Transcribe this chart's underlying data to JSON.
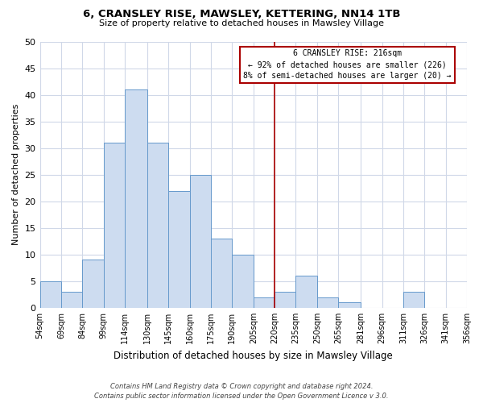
{
  "title": "6, CRANSLEY RISE, MAWSLEY, KETTERING, NN14 1TB",
  "subtitle": "Size of property relative to detached houses in Mawsley Village",
  "xlabel": "Distribution of detached houses by size in Mawsley Village",
  "ylabel": "Number of detached properties",
  "footer_lines": [
    "Contains HM Land Registry data © Crown copyright and database right 2024.",
    "Contains public sector information licensed under the Open Government Licence v 3.0."
  ],
  "bin_labels": [
    "54sqm",
    "69sqm",
    "84sqm",
    "99sqm",
    "114sqm",
    "130sqm",
    "145sqm",
    "160sqm",
    "175sqm",
    "190sqm",
    "205sqm",
    "220sqm",
    "235sqm",
    "250sqm",
    "265sqm",
    "281sqm",
    "296sqm",
    "311sqm",
    "326sqm",
    "341sqm",
    "356sqm"
  ],
  "bar_values": [
    5,
    3,
    9,
    31,
    41,
    31,
    22,
    25,
    13,
    10,
    2,
    3,
    6,
    2,
    1,
    0,
    0,
    3,
    0,
    0
  ],
  "bar_color": "#cddcf0",
  "bar_edge_color": "#6699cc",
  "grid_color": "#d0d8e8",
  "vline_color": "#aa0000",
  "annotation_box_text": "6 CRANSLEY RISE: 216sqm\n← 92% of detached houses are smaller (226)\n8% of semi-detached houses are larger (20) →",
  "annotation_box_color": "#ffffff",
  "annotation_box_edge_color": "#aa0000",
  "ylim": [
    0,
    50
  ],
  "yticks": [
    0,
    5,
    10,
    15,
    20,
    25,
    30,
    35,
    40,
    45,
    50
  ],
  "bin_edges": [
    54,
    69,
    84,
    99,
    114,
    130,
    145,
    160,
    175,
    190,
    205,
    220,
    235,
    250,
    265,
    281,
    296,
    311,
    326,
    341,
    356
  ],
  "vline_bin_index": 11
}
